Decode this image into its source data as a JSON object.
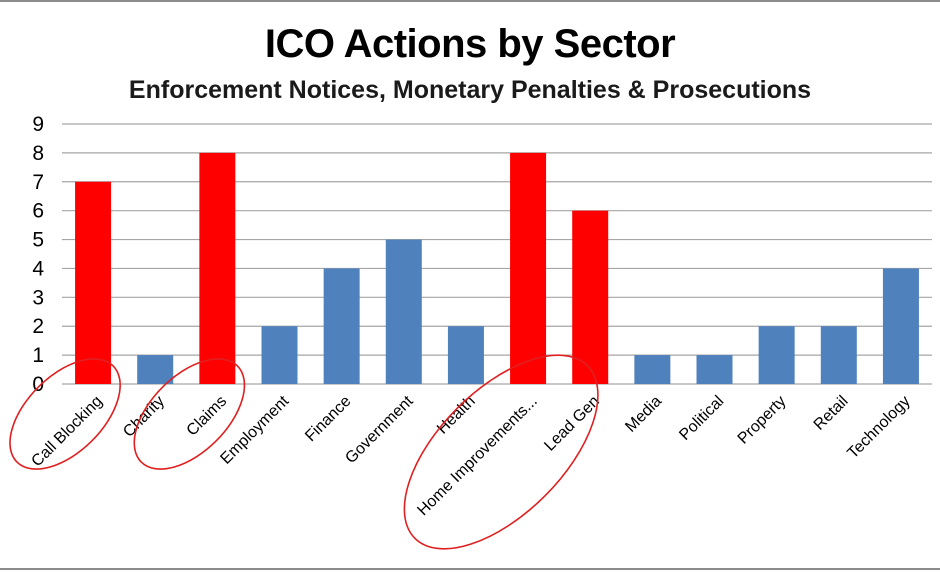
{
  "chart_data": {
    "type": "bar",
    "title": "ICO Actions by Sector",
    "subtitle": "Enforcement Notices, Monetary Penalties & Prosecutions",
    "xlabel": "",
    "ylabel": "",
    "ylim": [
      0,
      9
    ],
    "yticks": [
      0,
      1,
      2,
      3,
      4,
      5,
      6,
      7,
      8,
      9
    ],
    "grid": true,
    "categories": [
      "Call Blocking",
      "Charity",
      "Claims",
      "Employment",
      "Finance",
      "Government",
      "Health",
      "Home Improvements...",
      "Lead Gen",
      "Media",
      "Political",
      "Property",
      "Retail",
      "Technology"
    ],
    "values": [
      7,
      1,
      8,
      2,
      4,
      5,
      2,
      8,
      6,
      1,
      1,
      2,
      2,
      4
    ],
    "highlighted": [
      "Call Blocking",
      "Claims",
      "Home Improvements...",
      "Lead Gen"
    ],
    "annotations": [
      {
        "type": "ellipse",
        "encircles": [
          "Call Blocking"
        ]
      },
      {
        "type": "ellipse",
        "encircles": [
          "Claims"
        ]
      },
      {
        "type": "ellipse",
        "encircles": [
          "Home Improvements...",
          "Lead Gen"
        ]
      }
    ],
    "colors": {
      "default_bar": "#4f81bd",
      "highlight_bar": "#ff0000",
      "annotation": "#e02020",
      "grid": "#a6a6a6"
    }
  }
}
